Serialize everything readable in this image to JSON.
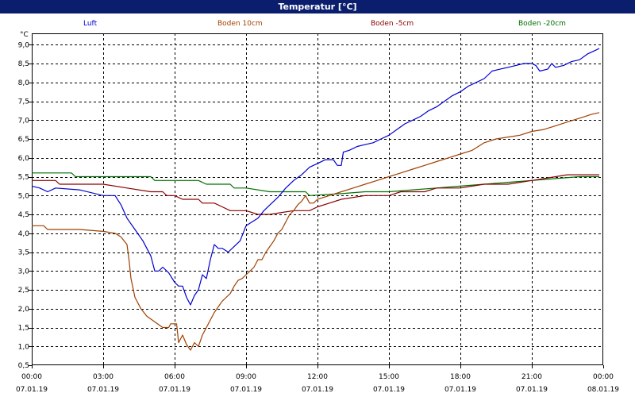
{
  "window": {
    "title": "Temperatur [°C]"
  },
  "chart_data": {
    "type": "line",
    "unit": "°C",
    "ylim": [
      0.5,
      9.3
    ],
    "yticks": [
      "0,5",
      "1,0",
      "1,5",
      "2,0",
      "2,5",
      "3,0",
      "3,5",
      "4,0",
      "4,5",
      "5,0",
      "5,5",
      "6,0",
      "6,5",
      "7,0",
      "7,5",
      "8,0",
      "8,5",
      "9,0"
    ],
    "xticks": [
      {
        "time": "00:00",
        "date": "07.01.19"
      },
      {
        "time": "03:00",
        "date": "07.01.19"
      },
      {
        "time": "06:00",
        "date": "07.01.19"
      },
      {
        "time": "09:00",
        "date": "07.01.19"
      },
      {
        "time": "12:00",
        "date": "07.01.19"
      },
      {
        "time": "15:00",
        "date": "07.01.19"
      },
      {
        "time": "18:00",
        "date": "07.01.19"
      },
      {
        "time": "21:00",
        "date": "07.01.19"
      },
      {
        "time": "00:00",
        "date": "08.01.19"
      }
    ],
    "grid": true,
    "legend_position": "top",
    "series": [
      {
        "name": "Luft",
        "color": "#0000d0",
        "points": [
          [
            "00:00",
            5.25
          ],
          [
            "00:20",
            5.2
          ],
          [
            "00:40",
            5.1
          ],
          [
            "01:00",
            5.2
          ],
          [
            "02:00",
            5.15
          ],
          [
            "03:00",
            5.0
          ],
          [
            "03:30",
            5.0
          ],
          [
            "03:45",
            4.75
          ],
          [
            "04:00",
            4.4
          ],
          [
            "04:20",
            4.1
          ],
          [
            "04:40",
            3.8
          ],
          [
            "05:00",
            3.4
          ],
          [
            "05:10",
            3.0
          ],
          [
            "05:20",
            3.0
          ],
          [
            "05:30",
            3.1
          ],
          [
            "05:45",
            2.95
          ],
          [
            "06:00",
            2.7
          ],
          [
            "06:10",
            2.6
          ],
          [
            "06:20",
            2.6
          ],
          [
            "06:30",
            2.3
          ],
          [
            "06:40",
            2.1
          ],
          [
            "06:50",
            2.35
          ],
          [
            "07:00",
            2.5
          ],
          [
            "07:10",
            2.9
          ],
          [
            "07:20",
            2.8
          ],
          [
            "07:30",
            3.3
          ],
          [
            "07:40",
            3.7
          ],
          [
            "07:50",
            3.6
          ],
          [
            "08:00",
            3.6
          ],
          [
            "08:15",
            3.5
          ],
          [
            "08:30",
            3.65
          ],
          [
            "08:45",
            3.8
          ],
          [
            "09:00",
            4.2
          ],
          [
            "09:15",
            4.3
          ],
          [
            "09:30",
            4.4
          ],
          [
            "09:45",
            4.6
          ],
          [
            "10:00",
            4.75
          ],
          [
            "10:20",
            4.95
          ],
          [
            "10:40",
            5.2
          ],
          [
            "11:00",
            5.4
          ],
          [
            "11:20",
            5.55
          ],
          [
            "11:40",
            5.75
          ],
          [
            "12:00",
            5.85
          ],
          [
            "12:20",
            5.95
          ],
          [
            "12:40",
            5.95
          ],
          [
            "12:50",
            5.8
          ],
          [
            "13:00",
            5.8
          ],
          [
            "13:05",
            6.15
          ],
          [
            "13:20",
            6.2
          ],
          [
            "13:40",
            6.3
          ],
          [
            "14:00",
            6.35
          ],
          [
            "14:20",
            6.4
          ],
          [
            "14:40",
            6.5
          ],
          [
            "15:00",
            6.6
          ],
          [
            "15:20",
            6.75
          ],
          [
            "15:40",
            6.9
          ],
          [
            "16:00",
            7.0
          ],
          [
            "16:20",
            7.1
          ],
          [
            "16:40",
            7.25
          ],
          [
            "17:00",
            7.35
          ],
          [
            "17:20",
            7.5
          ],
          [
            "17:40",
            7.65
          ],
          [
            "18:00",
            7.75
          ],
          [
            "18:20",
            7.9
          ],
          [
            "18:40",
            8.0
          ],
          [
            "19:00",
            8.1
          ],
          [
            "19:20",
            8.3
          ],
          [
            "19:40",
            8.35
          ],
          [
            "20:00",
            8.4
          ],
          [
            "20:20",
            8.45
          ],
          [
            "20:40",
            8.5
          ],
          [
            "21:00",
            8.5
          ],
          [
            "21:10",
            8.45
          ],
          [
            "21:20",
            8.3
          ],
          [
            "21:40",
            8.35
          ],
          [
            "21:50",
            8.5
          ],
          [
            "22:00",
            8.4
          ],
          [
            "22:20",
            8.45
          ],
          [
            "22:40",
            8.55
          ],
          [
            "23:00",
            8.6
          ],
          [
            "23:20",
            8.75
          ],
          [
            "23:40",
            8.85
          ],
          [
            "23:50",
            8.9
          ]
        ]
      },
      {
        "name": "Boden 10cm",
        "color": "#a04000",
        "points": [
          [
            "00:00",
            4.2
          ],
          [
            "00:30",
            4.2
          ],
          [
            "00:40",
            4.1
          ],
          [
            "01:00",
            4.1
          ],
          [
            "02:00",
            4.1
          ],
          [
            "03:00",
            4.05
          ],
          [
            "03:30",
            4.0
          ],
          [
            "03:45",
            3.9
          ],
          [
            "04:00",
            3.7
          ],
          [
            "04:05",
            3.3
          ],
          [
            "04:10",
            2.8
          ],
          [
            "04:20",
            2.3
          ],
          [
            "04:35",
            2.0
          ],
          [
            "04:50",
            1.8
          ],
          [
            "05:10",
            1.65
          ],
          [
            "05:30",
            1.5
          ],
          [
            "05:45",
            1.5
          ],
          [
            "05:50",
            1.6
          ],
          [
            "06:05",
            1.6
          ],
          [
            "06:10",
            1.1
          ],
          [
            "06:20",
            1.3
          ],
          [
            "06:30",
            1.05
          ],
          [
            "06:40",
            0.9
          ],
          [
            "06:50",
            1.1
          ],
          [
            "07:00",
            1.0
          ],
          [
            "07:10",
            1.3
          ],
          [
            "07:20",
            1.5
          ],
          [
            "07:40",
            1.9
          ],
          [
            "08:00",
            2.2
          ],
          [
            "08:10",
            2.3
          ],
          [
            "08:20",
            2.4
          ],
          [
            "08:30",
            2.6
          ],
          [
            "08:40",
            2.75
          ],
          [
            "08:50",
            2.8
          ],
          [
            "09:00",
            2.9
          ],
          [
            "09:10",
            3.0
          ],
          [
            "09:20",
            3.1
          ],
          [
            "09:30",
            3.3
          ],
          [
            "09:40",
            3.3
          ],
          [
            "09:50",
            3.5
          ],
          [
            "10:00",
            3.65
          ],
          [
            "10:10",
            3.8
          ],
          [
            "10:20",
            4.0
          ],
          [
            "10:30",
            4.1
          ],
          [
            "10:40",
            4.3
          ],
          [
            "10:50",
            4.5
          ],
          [
            "11:00",
            4.6
          ],
          [
            "11:10",
            4.75
          ],
          [
            "11:20",
            4.85
          ],
          [
            "11:30",
            5.0
          ],
          [
            "11:40",
            4.8
          ],
          [
            "11:50",
            4.8
          ],
          [
            "12:00",
            4.9
          ],
          [
            "12:30",
            5.0
          ],
          [
            "13:00",
            5.1
          ],
          [
            "13:30",
            5.2
          ],
          [
            "14:00",
            5.3
          ],
          [
            "14:30",
            5.4
          ],
          [
            "15:00",
            5.5
          ],
          [
            "15:30",
            5.6
          ],
          [
            "16:00",
            5.7
          ],
          [
            "16:30",
            5.8
          ],
          [
            "17:00",
            5.9
          ],
          [
            "17:30",
            6.0
          ],
          [
            "18:00",
            6.1
          ],
          [
            "18:30",
            6.2
          ],
          [
            "19:00",
            6.4
          ],
          [
            "19:30",
            6.5
          ],
          [
            "20:00",
            6.55
          ],
          [
            "20:30",
            6.6
          ],
          [
            "21:00",
            6.7
          ],
          [
            "21:30",
            6.75
          ],
          [
            "22:00",
            6.85
          ],
          [
            "22:30",
            6.95
          ],
          [
            "23:00",
            7.05
          ],
          [
            "23:30",
            7.15
          ],
          [
            "23:50",
            7.2
          ]
        ]
      },
      {
        "name": "Boden -5cm",
        "color": "#8b0000",
        "points": [
          [
            "00:00",
            5.4
          ],
          [
            "01:00",
            5.4
          ],
          [
            "01:10",
            5.3
          ],
          [
            "02:00",
            5.3
          ],
          [
            "03:00",
            5.3
          ],
          [
            "04:00",
            5.2
          ],
          [
            "05:00",
            5.1
          ],
          [
            "05:30",
            5.1
          ],
          [
            "05:40",
            5.0
          ],
          [
            "06:00",
            5.0
          ],
          [
            "06:20",
            4.9
          ],
          [
            "07:00",
            4.9
          ],
          [
            "07:10",
            4.8
          ],
          [
            "07:40",
            4.8
          ],
          [
            "08:00",
            4.7
          ],
          [
            "08:20",
            4.6
          ],
          [
            "09:00",
            4.6
          ],
          [
            "09:30",
            4.5
          ],
          [
            "10:00",
            4.5
          ],
          [
            "10:30",
            4.55
          ],
          [
            "11:00",
            4.6
          ],
          [
            "11:40",
            4.6
          ],
          [
            "12:00",
            4.7
          ],
          [
            "12:30",
            4.8
          ],
          [
            "13:00",
            4.9
          ],
          [
            "14:00",
            5.0
          ],
          [
            "15:00",
            5.0
          ],
          [
            "15:30",
            5.1
          ],
          [
            "16:30",
            5.1
          ],
          [
            "17:00",
            5.2
          ],
          [
            "18:00",
            5.2
          ],
          [
            "19:00",
            5.3
          ],
          [
            "20:00",
            5.3
          ],
          [
            "21:00",
            5.4
          ],
          [
            "22:00",
            5.5
          ],
          [
            "22:30",
            5.55
          ],
          [
            "23:50",
            5.55
          ]
        ]
      },
      {
        "name": "Boden -20cm",
        "color": "#007000",
        "points": [
          [
            "00:00",
            5.6
          ],
          [
            "01:40",
            5.6
          ],
          [
            "01:50",
            5.5
          ],
          [
            "05:00",
            5.5
          ],
          [
            "05:10",
            5.4
          ],
          [
            "07:00",
            5.4
          ],
          [
            "07:20",
            5.3
          ],
          [
            "08:20",
            5.3
          ],
          [
            "08:30",
            5.2
          ],
          [
            "09:00",
            5.2
          ],
          [
            "10:00",
            5.1
          ],
          [
            "11:30",
            5.1
          ],
          [
            "11:40",
            5.0
          ],
          [
            "13:00",
            5.05
          ],
          [
            "14:00",
            5.1
          ],
          [
            "15:00",
            5.1
          ],
          [
            "16:00",
            5.15
          ],
          [
            "17:00",
            5.2
          ],
          [
            "18:00",
            5.25
          ],
          [
            "19:00",
            5.3
          ],
          [
            "20:00",
            5.35
          ],
          [
            "21:00",
            5.4
          ],
          [
            "22:00",
            5.45
          ],
          [
            "23:00",
            5.5
          ],
          [
            "23:50",
            5.5
          ]
        ]
      }
    ]
  }
}
